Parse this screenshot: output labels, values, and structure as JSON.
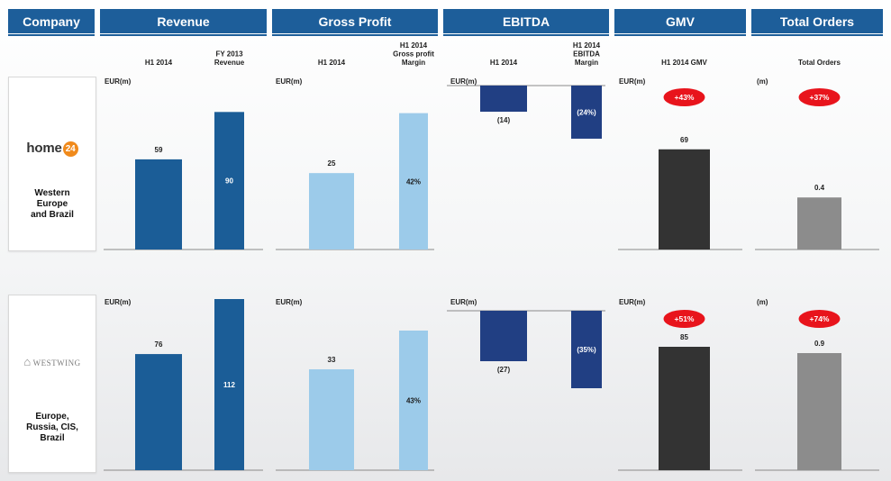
{
  "headers": [
    "Company",
    "Revenue",
    "Gross Profit",
    "EBITDA",
    "GMV",
    "Total Orders"
  ],
  "companies": [
    {
      "logo_text": "home",
      "logo_badge": "24",
      "region_lines": [
        "Western",
        "Europe",
        "and Brazil"
      ]
    },
    {
      "logo_text": "WESTWING",
      "region_lines": [
        "Europe,",
        "Russia, CIS,",
        "Brazil"
      ]
    }
  ],
  "colors": {
    "header": "#1d5e9a",
    "revenue": "#1b5d97",
    "gross_profit": "#9ccbea",
    "ebitda": "#213f83",
    "gmv": "#333333",
    "orders": "#8c8c8c",
    "growth_badge": "#e8141c"
  },
  "chart_data": [
    {
      "type": "bar",
      "metric": "Revenue",
      "company": "home24",
      "ylabel": "EUR(m)",
      "categories": [
        "H1 2014",
        "FY 2013 Revenue"
      ],
      "values": [
        59,
        90
      ]
    },
    {
      "type": "bar",
      "metric": "Gross Profit",
      "company": "home24",
      "ylabel": "EUR(m)",
      "categories": [
        "H1 2014",
        "H1 2014 Gross profit Margin"
      ],
      "values": [
        25,
        42
      ],
      "labels": [
        "25",
        "42%"
      ]
    },
    {
      "type": "bar",
      "metric": "EBITDA",
      "company": "home24",
      "ylabel": "EUR(m)",
      "categories": [
        "H1 2014",
        "H1 2014 EBITDA Margin"
      ],
      "values": [
        -14,
        -24
      ],
      "labels": [
        "(14)",
        "(24%)"
      ]
    },
    {
      "type": "bar",
      "metric": "GMV",
      "company": "home24",
      "ylabel": "EUR(m)",
      "categories": [
        "H1 2014 GMV"
      ],
      "values": [
        69
      ],
      "growth": "+43%"
    },
    {
      "type": "bar",
      "metric": "Total Orders",
      "company": "home24",
      "ylabel": "(m)",
      "categories": [
        "Total Orders"
      ],
      "values": [
        0.4
      ],
      "growth": "+37%"
    },
    {
      "type": "bar",
      "metric": "Revenue",
      "company": "Westwing",
      "ylabel": "EUR(m)",
      "values": [
        76,
        112
      ]
    },
    {
      "type": "bar",
      "metric": "Gross Profit",
      "company": "Westwing",
      "ylabel": "EUR(m)",
      "values": [
        33,
        43
      ],
      "labels": [
        "33",
        "43%"
      ]
    },
    {
      "type": "bar",
      "metric": "EBITDA",
      "company": "Westwing",
      "ylabel": "EUR(m)",
      "values": [
        -27,
        -35
      ],
      "labels": [
        "(27)",
        "(35%)"
      ]
    },
    {
      "type": "bar",
      "metric": "GMV",
      "company": "Westwing",
      "ylabel": "EUR(m)",
      "values": [
        85
      ],
      "growth": "+51%"
    },
    {
      "type": "bar",
      "metric": "Total Orders",
      "company": "Westwing",
      "ylabel": "(m)",
      "values": [
        0.9
      ],
      "growth": "+74%"
    }
  ]
}
